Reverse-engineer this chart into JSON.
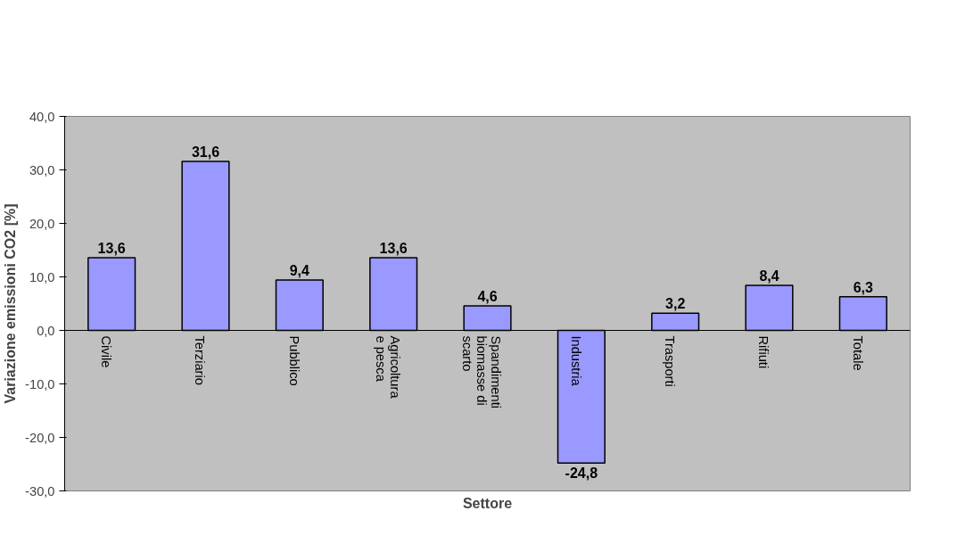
{
  "chart_data": {
    "type": "bar",
    "categories": [
      "Civile",
      "Terziario",
      "Pubblico",
      "Agricoltura e pesca",
      "Spandimenti biomasse di scarto",
      "Industria",
      "Trasporti",
      "Rifiuti",
      "Totale"
    ],
    "values": [
      13.6,
      31.6,
      9.4,
      13.6,
      4.6,
      -24.8,
      3.2,
      8.4,
      6.3
    ],
    "value_labels": [
      "13,6",
      "31,6",
      "9,4",
      "13,6",
      "4,6",
      "-24,8",
      "3,2",
      "8,4",
      "6,3"
    ],
    "color": "#9999ff",
    "xlabel": "Settore",
    "ylabel": "Variazione emissioni CO2 [%]",
    "ylim": [
      -30,
      40
    ],
    "yticks": [
      {
        "value": -30,
        "label": "-30,0"
      },
      {
        "value": -20,
        "label": "-20,0"
      },
      {
        "value": -10,
        "label": "-10,0"
      },
      {
        "value": 0,
        "label": "0,0"
      },
      {
        "value": 10,
        "label": "10,0"
      },
      {
        "value": 20,
        "label": "20,0"
      },
      {
        "value": 30,
        "label": "30,0"
      },
      {
        "value": 40,
        "label": "40,0"
      }
    ],
    "grid": false
  }
}
